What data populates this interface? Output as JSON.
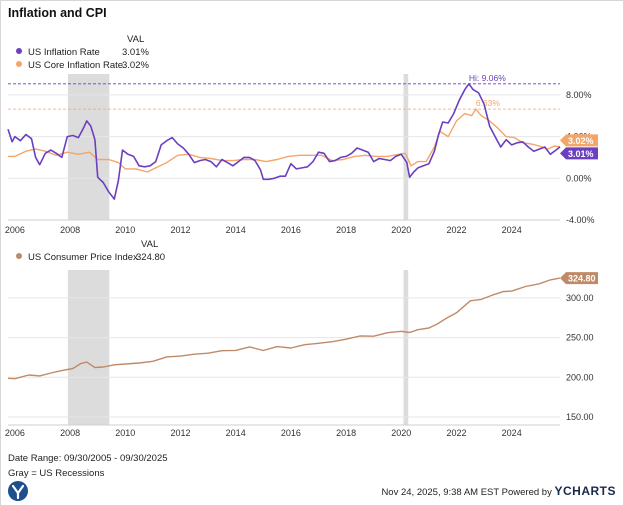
{
  "title": "Inflation and CPI",
  "legend_top": {
    "header": "VAL",
    "items": [
      {
        "label": "US Inflation Rate",
        "value": "3.01%",
        "color": "#6a3fc0"
      },
      {
        "label": "US Core Inflation Rate",
        "value": "3.02%",
        "color": "#f4a56a"
      }
    ]
  },
  "legend_bottom": {
    "header": "VAL",
    "items": [
      {
        "label": "US Consumer Price Index",
        "value": "324.80",
        "color": "#c08a68"
      }
    ]
  },
  "footer": {
    "date_range": "Date Range: 09/30/2005 - 09/30/2025",
    "recessions_note": "Gray = US Recessions",
    "timestamp": "Nov 24, 2025, 9:38 AM EST Powered by",
    "brand": "YCHARTS"
  },
  "chart_data": [
    {
      "type": "line",
      "title": "Inflation",
      "x_domain": [
        2005.75,
        2025.75
      ],
      "ylim": [
        -4,
        10
      ],
      "y_ticks": [
        8,
        4,
        0,
        -4
      ],
      "y_tick_labels": [
        "8.00%",
        "4.00%",
        "0.00%",
        "-4.00%"
      ],
      "x_ticks": [
        2006,
        2008,
        2010,
        2012,
        2014,
        2016,
        2018,
        2020,
        2022,
        2024
      ],
      "x_tick_labels": [
        "2006",
        "2008",
        "2010",
        "2012",
        "2014",
        "2016",
        "2018",
        "2020",
        "2022",
        "2024"
      ],
      "recessions": [
        [
          2007.92,
          2009.42
        ],
        [
          2020.08,
          2020.25
        ]
      ],
      "reference_lines": [
        {
          "value": 9.06,
          "label": "Hi: 9.06%",
          "series": "US Inflation Rate",
          "x": 2022.45
        },
        {
          "value": 6.63,
          "label": "6.63%",
          "series": "US Core Inflation Rate",
          "x": 2022.7
        }
      ],
      "end_labels": [
        "3.02%",
        "3.01%"
      ],
      "series": [
        {
          "name": "US Inflation Rate",
          "color": "#6a3fc0",
          "x": [
            2005.75,
            2005.9,
            2006.0,
            2006.2,
            2006.4,
            2006.6,
            2006.75,
            2006.9,
            2007.1,
            2007.3,
            2007.5,
            2007.7,
            2007.9,
            2008.1,
            2008.3,
            2008.5,
            2008.6,
            2008.75,
            2008.9,
            2009.0,
            2009.2,
            2009.4,
            2009.6,
            2009.75,
            2009.9,
            2010.1,
            2010.3,
            2010.5,
            2010.7,
            2010.9,
            2011.1,
            2011.3,
            2011.5,
            2011.7,
            2011.9,
            2012.1,
            2012.3,
            2012.5,
            2012.7,
            2012.9,
            2013.1,
            2013.3,
            2013.5,
            2013.7,
            2013.9,
            2014.1,
            2014.3,
            2014.5,
            2014.7,
            2014.9,
            2015.0,
            2015.2,
            2015.4,
            2015.6,
            2015.8,
            2016.0,
            2016.2,
            2016.4,
            2016.6,
            2016.8,
            2017.0,
            2017.2,
            2017.4,
            2017.6,
            2017.8,
            2018.0,
            2018.2,
            2018.4,
            2018.6,
            2018.8,
            2019.0,
            2019.2,
            2019.4,
            2019.6,
            2019.8,
            2020.0,
            2020.2,
            2020.3,
            2020.45,
            2020.6,
            2020.8,
            2021.0,
            2021.2,
            2021.35,
            2021.5,
            2021.7,
            2021.9,
            2022.1,
            2022.3,
            2022.45,
            2022.6,
            2022.8,
            2023.0,
            2023.2,
            2023.4,
            2023.6,
            2023.8,
            2024.0,
            2024.2,
            2024.4,
            2024.6,
            2024.8,
            2025.0,
            2025.2,
            2025.4,
            2025.6,
            2025.75
          ],
          "values": [
            4.7,
            3.5,
            4.0,
            3.6,
            4.2,
            3.8,
            2.0,
            1.3,
            2.4,
            2.7,
            2.4,
            2.0,
            4.0,
            4.1,
            3.9,
            4.9,
            5.5,
            5.0,
            3.7,
            0.1,
            -0.4,
            -1.3,
            -2.0,
            -0.2,
            2.7,
            2.3,
            2.1,
            1.2,
            1.1,
            1.2,
            1.6,
            3.2,
            3.6,
            3.9,
            3.3,
            2.9,
            2.3,
            1.5,
            1.7,
            1.8,
            1.6,
            1.1,
            1.8,
            1.5,
            1.2,
            1.6,
            2.0,
            2.0,
            1.7,
            0.8,
            -0.1,
            -0.1,
            0.0,
            0.2,
            0.2,
            1.4,
            0.9,
            1.0,
            1.1,
            1.6,
            2.5,
            2.4,
            1.6,
            1.7,
            2.0,
            2.1,
            2.4,
            2.9,
            2.7,
            2.5,
            1.6,
            1.9,
            1.8,
            1.7,
            2.1,
            2.3,
            1.5,
            0.1,
            0.6,
            1.0,
            1.2,
            1.4,
            2.6,
            4.2,
            5.4,
            5.3,
            6.2,
            7.5,
            8.5,
            9.06,
            8.5,
            8.2,
            7.1,
            5.0,
            4.0,
            3.0,
            3.7,
            3.2,
            3.4,
            3.5,
            3.0,
            2.6,
            2.8,
            3.0,
            2.3,
            2.7,
            3.01
          ]
        },
        {
          "name": "US Core Inflation Rate",
          "color": "#f4a56a",
          "x": [
            2005.75,
            2006.0,
            2006.4,
            2006.75,
            2007.1,
            2007.5,
            2007.9,
            2008.3,
            2008.7,
            2009.0,
            2009.4,
            2009.75,
            2010.0,
            2010.4,
            2010.8,
            2011.1,
            2011.5,
            2011.9,
            2012.3,
            2012.7,
            2013.1,
            2013.5,
            2013.9,
            2014.3,
            2014.7,
            2015.1,
            2015.5,
            2015.9,
            2016.3,
            2016.7,
            2017.1,
            2017.5,
            2017.9,
            2018.3,
            2018.7,
            2019.1,
            2019.5,
            2019.9,
            2020.15,
            2020.35,
            2020.6,
            2020.9,
            2021.2,
            2021.4,
            2021.7,
            2022.0,
            2022.3,
            2022.55,
            2022.7,
            2022.9,
            2023.2,
            2023.5,
            2023.8,
            2024.1,
            2024.4,
            2024.7,
            2025.0,
            2025.3,
            2025.55,
            2025.75
          ],
          "values": [
            2.1,
            2.1,
            2.6,
            2.8,
            2.6,
            2.2,
            2.5,
            2.3,
            2.5,
            1.8,
            1.8,
            1.5,
            0.9,
            0.9,
            0.6,
            1.0,
            1.5,
            2.2,
            2.3,
            2.0,
            1.9,
            1.7,
            1.7,
            1.8,
            1.8,
            1.6,
            1.8,
            2.1,
            2.2,
            2.2,
            2.2,
            1.7,
            1.8,
            2.1,
            2.2,
            2.1,
            2.1,
            2.3,
            2.4,
            1.2,
            1.6,
            1.6,
            3.0,
            4.5,
            4.0,
            5.5,
            6.2,
            6.0,
            6.63,
            6.0,
            5.5,
            4.8,
            4.0,
            3.9,
            3.4,
            3.3,
            3.1,
            2.8,
            3.1,
            3.02
          ]
        }
      ]
    },
    {
      "type": "line",
      "title": "Consumer Price Index",
      "x_domain": [
        2005.75,
        2025.75
      ],
      "ylim": [
        140,
        335
      ],
      "y_ticks": [
        300,
        250,
        200,
        150
      ],
      "y_tick_labels": [
        "300.00",
        "250.00",
        "200.00",
        "150.00"
      ],
      "x_ticks": [
        2006,
        2008,
        2010,
        2012,
        2014,
        2016,
        2018,
        2020,
        2022,
        2024
      ],
      "x_tick_labels": [
        "2006",
        "2008",
        "2010",
        "2012",
        "2014",
        "2016",
        "2018",
        "2020",
        "2022",
        "2024"
      ],
      "recessions": [
        [
          2007.92,
          2009.42
        ],
        [
          2020.08,
          2020.25
        ]
      ],
      "end_labels": [
        "324.80"
      ],
      "series": [
        {
          "name": "US Consumer Price Index",
          "color": "#c08a68",
          "x": [
            2005.75,
            2006.0,
            2006.5,
            2006.9,
            2007.3,
            2007.7,
            2008.1,
            2008.4,
            2008.6,
            2008.9,
            2009.2,
            2009.6,
            2010.0,
            2010.5,
            2011.0,
            2011.5,
            2012.0,
            2012.5,
            2013.0,
            2013.5,
            2014.0,
            2014.5,
            2015.0,
            2015.5,
            2016.0,
            2016.5,
            2017.0,
            2017.5,
            2018.0,
            2018.5,
            2019.0,
            2019.5,
            2020.0,
            2020.3,
            2020.6,
            2021.0,
            2021.3,
            2021.6,
            2022.0,
            2022.5,
            2022.9,
            2023.3,
            2023.7,
            2024.0,
            2024.5,
            2025.0,
            2025.4,
            2025.75
          ],
          "values": [
            198.8,
            198.3,
            202.9,
            201.8,
            205.4,
            208.5,
            211.1,
            217.5,
            219.1,
            212.4,
            213.0,
            215.7,
            216.7,
            218.0,
            220.2,
            225.7,
            226.7,
            229.1,
            230.3,
            233.5,
            233.9,
            238.3,
            233.7,
            238.6,
            236.9,
            241.0,
            242.8,
            244.8,
            247.9,
            252.0,
            251.7,
            256.1,
            257.9,
            256.4,
            259.9,
            262.0,
            267.1,
            273.6,
            281.1,
            296.3,
            298.0,
            303.4,
            307.8,
            308.4,
            314.2,
            317.6,
            322.6,
            324.8
          ]
        }
      ]
    }
  ]
}
